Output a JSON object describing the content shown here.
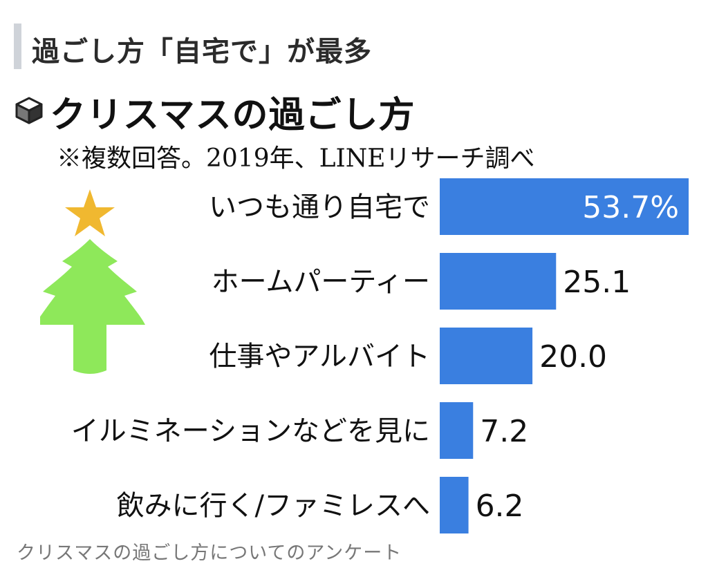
{
  "section_title": "過ごし方「自宅で」が最多",
  "caption": "クリスマスの過ごし方についてのアンケート",
  "icons": {
    "box": "box-icon",
    "star": "star-icon",
    "tree": "christmas-tree-icon"
  },
  "colors": {
    "bar": "#3a7fe0",
    "tree": "#8ee85a",
    "star": "#f0b830"
  },
  "chart_data": {
    "type": "bar",
    "orientation": "horizontal",
    "title": "クリスマスの過ごし方",
    "subtitle": "※複数回答。2019年、LINEリサーチ調べ",
    "categories": [
      "いつも通り自宅で",
      "ホームパーティー",
      "仕事やアルバイト",
      "イルミネーションなどを見に",
      "飲みに行く/ファミレスへ"
    ],
    "values": [
      53.7,
      25.1,
      20.0,
      7.2,
      6.2
    ],
    "value_labels": [
      "53.7%",
      "25.1",
      "20.0",
      "7.2",
      "6.2"
    ],
    "unit": "%",
    "grid": false,
    "legend": "none"
  }
}
